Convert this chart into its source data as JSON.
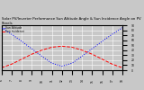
{
  "title": "Solar PV/Inverter Performance Sun Altitude Angle & Sun Incidence Angle on PV Panels",
  "legend": [
    "Sun Altitude",
    "Sun Incidence"
  ],
  "line_colors": [
    "blue",
    "red"
  ],
  "line_styles": [
    "dotted",
    "dashed"
  ],
  "x_values": [
    6,
    7,
    8,
    9,
    10,
    11,
    12,
    13,
    14,
    15,
    16,
    17,
    18
  ],
  "altitude_values": [
    85,
    72,
    58,
    43,
    28,
    14,
    8,
    14,
    28,
    43,
    58,
    72,
    85
  ],
  "incidence_values": [
    5,
    12,
    22,
    32,
    40,
    46,
    48,
    46,
    40,
    32,
    22,
    12,
    5
  ],
  "ylim": [
    0,
    90
  ],
  "xlim": [
    6,
    18
  ],
  "x_ticks": [
    6,
    7,
    8,
    9,
    10,
    11,
    12,
    13,
    14,
    15,
    16,
    17,
    18
  ],
  "y_ticks": [
    0,
    10,
    20,
    30,
    40,
    50,
    60,
    70,
    80,
    90
  ],
  "background_color": "#c8c8c8",
  "plot_bg_color": "#c8c8c8",
  "grid_color": "#ffffff",
  "title_fontsize": 2.8,
  "tick_fontsize": 2.2,
  "legend_fontsize": 2.2,
  "linewidth": 0.7,
  "markersize": 0.8
}
